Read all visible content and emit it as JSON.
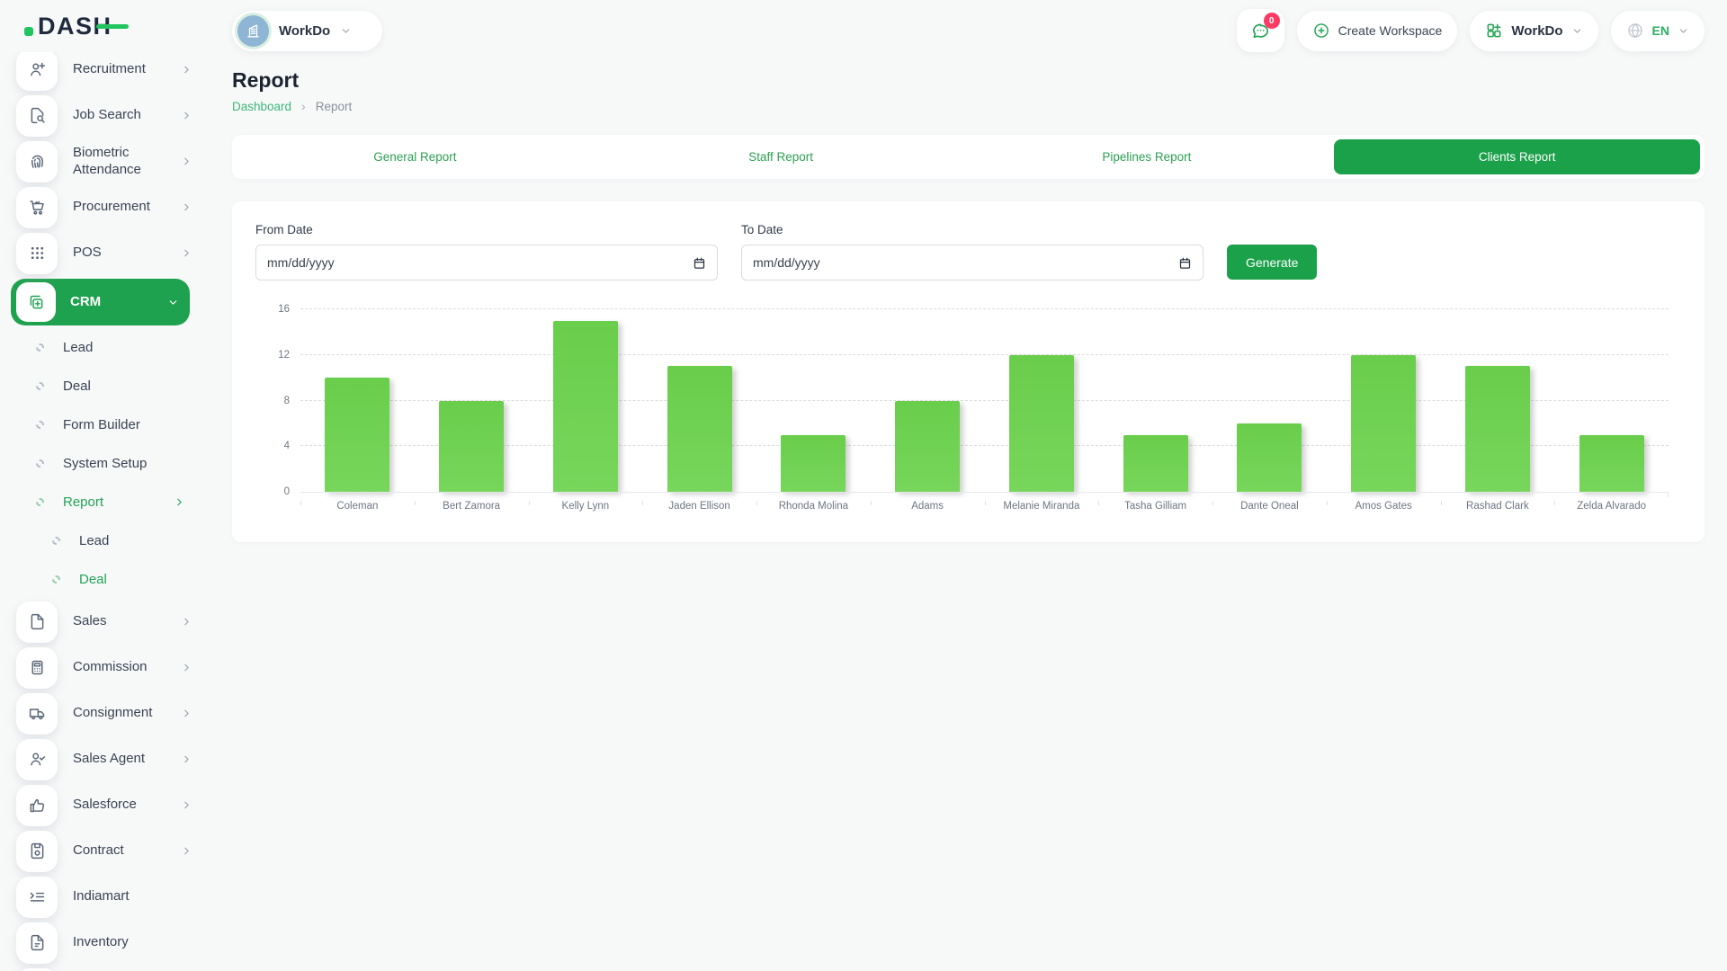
{
  "brand": {
    "logo_text": "DASH"
  },
  "topbar": {
    "workspace": {
      "label": "WorkDo"
    },
    "messages": {
      "badge": "0"
    },
    "create_workspace": {
      "label": "Create Workspace"
    },
    "workdo_menu": {
      "label": "WorkDo"
    },
    "language": {
      "label": "EN"
    }
  },
  "page": {
    "title": "Report",
    "breadcrumb_separator": "›",
    "breadcrumb": [
      {
        "label": "Dashboard",
        "link": true
      },
      {
        "label": "Report",
        "link": false
      }
    ]
  },
  "tabs": [
    {
      "label": "General Report",
      "active": false
    },
    {
      "label": "Staff Report",
      "active": false
    },
    {
      "label": "Pipelines Report",
      "active": false
    },
    {
      "label": "Clients Report",
      "active": true
    }
  ],
  "filters": {
    "from_date": {
      "label": "From Date",
      "placeholder": "mm/dd/yyyy"
    },
    "to_date": {
      "label": "To Date",
      "placeholder": "mm/dd/yyyy"
    },
    "generate_label": "Generate"
  },
  "sidebar": [
    {
      "label": "Recruitment",
      "icon": "user-plus-icon",
      "chevron": "right"
    },
    {
      "label": "Job Search",
      "icon": "file-search-icon",
      "chevron": "right"
    },
    {
      "label": "Biometric Attendance",
      "icon": "fingerprint-icon",
      "chevron": "right"
    },
    {
      "label": "Procurement",
      "icon": "cart-icon",
      "chevron": "right"
    },
    {
      "label": "POS",
      "icon": "grid-dots-icon",
      "chevron": "right"
    },
    {
      "label": "CRM",
      "icon": "copy-plus-icon",
      "chevron": "down",
      "active": true
    },
    {
      "label": "Lead",
      "type": "sub"
    },
    {
      "label": "Deal",
      "type": "sub"
    },
    {
      "label": "Form Builder",
      "type": "sub"
    },
    {
      "label": "System Setup",
      "type": "sub"
    },
    {
      "label": "Report",
      "type": "sub",
      "active": true,
      "chevron": "right"
    },
    {
      "label": "Lead",
      "type": "sub2"
    },
    {
      "label": "Deal",
      "type": "sub2",
      "active": true
    },
    {
      "label": "Sales",
      "icon": "file-icon",
      "chevron": "right"
    },
    {
      "label": "Commission",
      "icon": "calculator-icon",
      "chevron": "right"
    },
    {
      "label": "Consignment",
      "icon": "truck-icon",
      "chevron": "right"
    },
    {
      "label": "Sales Agent",
      "icon": "user-check-icon",
      "chevron": "right"
    },
    {
      "label": "Salesforce",
      "icon": "thumbs-up-icon",
      "chevron": "right"
    },
    {
      "label": "Contract",
      "icon": "floppy-icon",
      "chevron": "right"
    },
    {
      "label": "Indiamart",
      "icon": "indent-list-icon"
    },
    {
      "label": "Inventory",
      "icon": "file-text-icon"
    }
  ],
  "chart_data": {
    "type": "bar",
    "title": "",
    "xlabel": "",
    "ylabel": "",
    "categories": [
      "Coleman",
      "Bert Zamora",
      "Kelly Lynn",
      "Jaden Ellison",
      "Rhonda Molina",
      "Adams",
      "Melanie Miranda",
      "Tasha Gilliam",
      "Dante Oneal",
      "Amos Gates",
      "Rashad Clark",
      "Zelda Alvarado"
    ],
    "values": [
      10,
      8,
      15,
      11,
      5,
      8,
      12,
      5,
      6,
      12,
      11,
      5
    ],
    "ylim": [
      0,
      16
    ],
    "y_ticks": [
      0,
      4,
      8,
      12,
      16
    ],
    "grid": "dashed-horizontal",
    "legend": "none",
    "bar_color": "#6ecd50"
  },
  "colors": {
    "accent_green": "#1fa24f",
    "tab_green": "#1ca14b",
    "link_green": "#3cb878",
    "lang_green": "#2fae66",
    "badge_red": "#fb3b64",
    "bar_green": "#6ecd50",
    "logo_navy": "#1f2a3e",
    "logo_green": "#21c55f"
  }
}
